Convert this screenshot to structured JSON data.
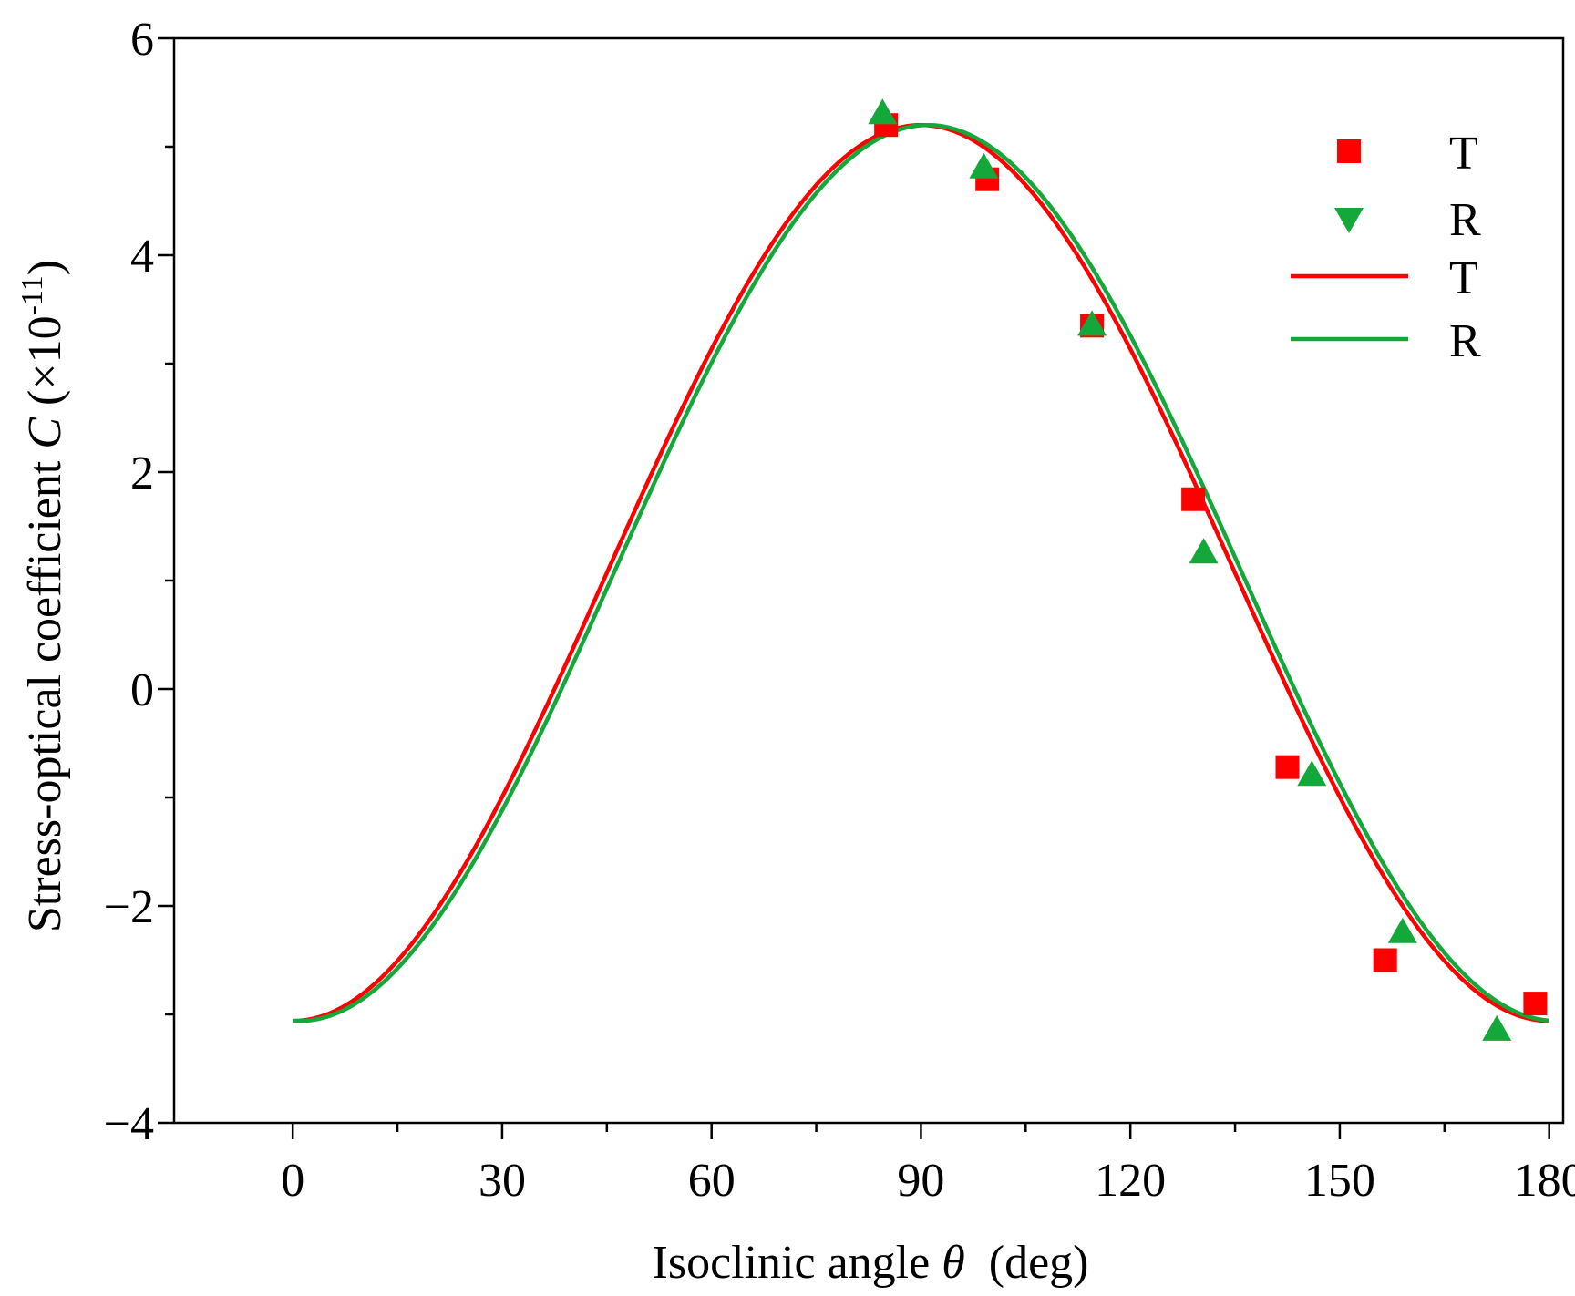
{
  "chart_data": {
    "type": "scatter",
    "title": "",
    "xlabel": {
      "prefix": "Isoclinic angle ",
      "symbol": "θ",
      "suffix": "  (deg)"
    },
    "ylabel": {
      "prefix": "Stress-optical coefficient ",
      "symbol": "C",
      "suffix_open": " (×10",
      "exponent": "-11",
      "suffix_close": ")"
    },
    "xlim": [
      -17,
      182
    ],
    "ylim": [
      -4,
      6
    ],
    "xticks": [
      0,
      30,
      60,
      90,
      120,
      150,
      180
    ],
    "xtick_labels": [
      "0",
      "30",
      "60",
      "90",
      "120",
      "150",
      "180"
    ],
    "xminor": [
      15,
      45,
      75,
      105,
      135,
      165
    ],
    "yticks": [
      -4,
      -2,
      0,
      2,
      4,
      6
    ],
    "ytick_labels": [
      "−4",
      "−2",
      "0",
      "2",
      "4",
      "6"
    ],
    "yminor": [
      -3,
      -1,
      1,
      3,
      5
    ],
    "grid": false,
    "legend_position": "top-right",
    "series": [
      {
        "name": "T",
        "kind": "scatter",
        "marker": "square",
        "color": "#ff0000",
        "x": [
          85,
          99.5,
          114.5,
          129,
          142.5,
          156.5,
          178
        ],
        "y": [
          5.2,
          4.7,
          3.35,
          1.75,
          -0.72,
          -2.5,
          -2.9
        ]
      },
      {
        "name": "R",
        "kind": "scatter",
        "marker": "triangle-down",
        "color": "#14a83b",
        "x": [
          84.5,
          99,
          114.5,
          130.5,
          146,
          159,
          172.5
        ],
        "y": [
          5.3,
          4.8,
          3.35,
          1.25,
          -0.8,
          -2.25,
          -3.15
        ]
      },
      {
        "name": "T",
        "kind": "line",
        "color": "#ff0000",
        "model": {
          "a": 1.07,
          "b": 4.13,
          "phase_deg": 0
        },
        "x_range": [
          0,
          180
        ]
      },
      {
        "name": "R",
        "kind": "line",
        "color": "#14a83b",
        "model": {
          "a": 1.07,
          "b": 4.13,
          "phase_deg": 1
        },
        "x_range": [
          0,
          180
        ]
      }
    ]
  }
}
